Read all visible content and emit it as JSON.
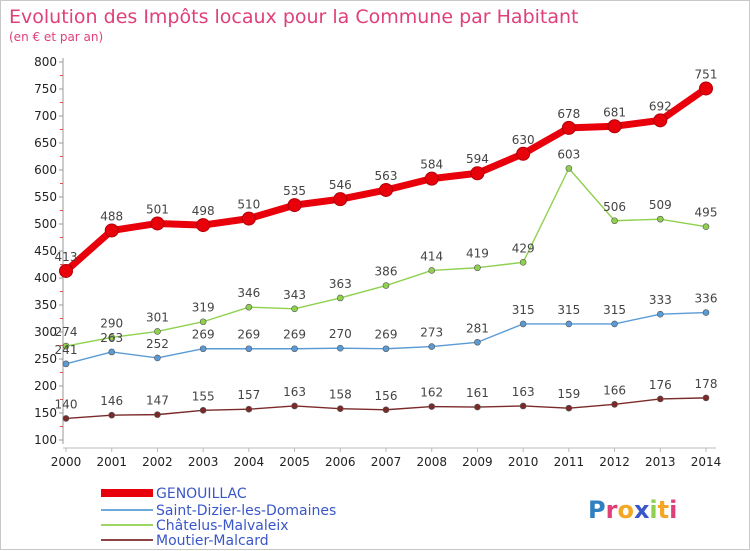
{
  "title": "Evolution des Impôts locaux pour la Commune par Habitant",
  "subtitle": "(en € et par an)",
  "brand": "Proxiti",
  "chart_data": {
    "type": "line",
    "x": [
      2000,
      2001,
      2002,
      2003,
      2004,
      2005,
      2006,
      2007,
      2008,
      2009,
      2010,
      2011,
      2012,
      2013,
      2014
    ],
    "ylim": [
      100,
      800
    ],
    "yticks": [
      100,
      150,
      200,
      250,
      300,
      350,
      400,
      450,
      500,
      550,
      600,
      650,
      700,
      750,
      800
    ],
    "grid": false,
    "legend_position": "bottom-left",
    "series": [
      {
        "name": "GENOUILLAC",
        "color": "#e8000b",
        "emphasis": true,
        "values": [
          413,
          488,
          501,
          498,
          510,
          535,
          546,
          563,
          584,
          594,
          630,
          678,
          681,
          692,
          751
        ]
      },
      {
        "name": "Saint-Dizier-les-Domaines",
        "color": "#5b9bd5",
        "emphasis": false,
        "values": [
          241,
          263,
          252,
          269,
          269,
          269,
          270,
          269,
          273,
          281,
          315,
          315,
          315,
          333,
          336
        ]
      },
      {
        "name": "Châtelus-Malvaleix",
        "color": "#8fd14f",
        "emphasis": false,
        "values": [
          274,
          290,
          301,
          319,
          346,
          343,
          363,
          386,
          414,
          419,
          429,
          603,
          506,
          509,
          495
        ]
      },
      {
        "name": "Moutier-Malcard",
        "color": "#7b2a2a",
        "emphasis": false,
        "values": [
          140,
          146,
          147,
          155,
          157,
          163,
          158,
          156,
          162,
          161,
          163,
          159,
          166,
          176,
          178
        ]
      }
    ]
  }
}
